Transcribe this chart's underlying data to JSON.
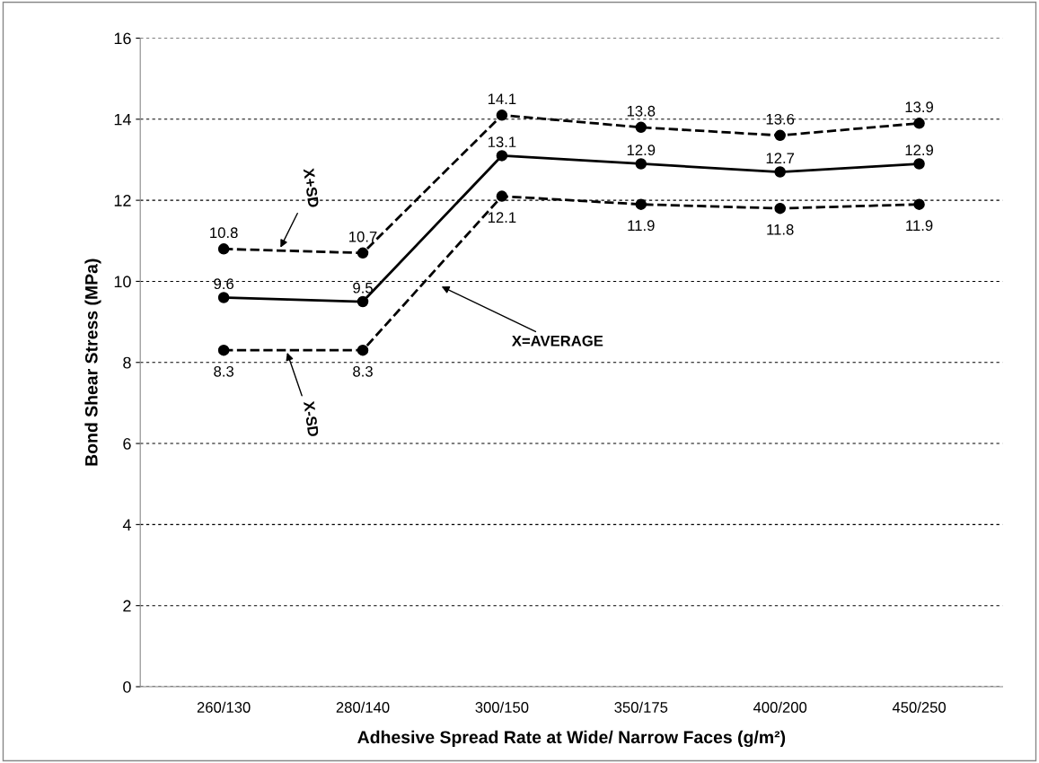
{
  "chart_data": {
    "type": "line",
    "xlabel": "Adhesive Spread Rate at Wide/ Narrow Faces (g/m²)",
    "ylabel": "Bond Shear Stress (MPa)",
    "categories": [
      "260/130",
      "280/140",
      "300/150",
      "350/175",
      "400/200",
      "450/250"
    ],
    "series": [
      {
        "name": "X+SD",
        "color": "#000000",
        "line_style": "dashed",
        "values": [
          10.8,
          10.7,
          14.1,
          13.8,
          13.6,
          13.9
        ]
      },
      {
        "name": "X=AVERAGE",
        "color": "#000000",
        "line_style": "solid",
        "values": [
          9.6,
          9.5,
          13.1,
          12.9,
          12.7,
          12.9
        ]
      },
      {
        "name": "X-SD",
        "color": "#000000",
        "line_style": "dashed",
        "values": [
          8.3,
          8.3,
          12.1,
          11.9,
          11.8,
          11.9
        ]
      }
    ],
    "ylim": [
      0,
      16
    ],
    "yticks": [
      0,
      2,
      4,
      6,
      8,
      10,
      12,
      14,
      16
    ],
    "grid": "y",
    "marker": "circle",
    "data_labels": true,
    "legend": false
  }
}
